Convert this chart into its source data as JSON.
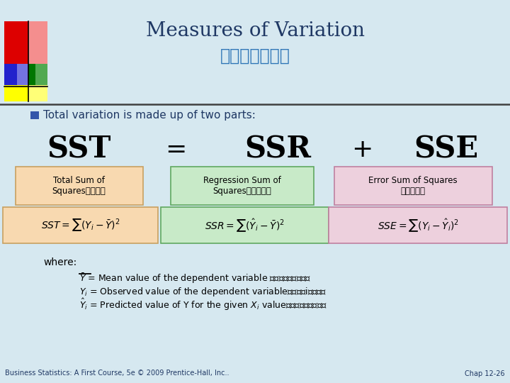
{
  "title_line1": "Measures of Variation",
  "title_line2": "随机扰动的度量",
  "title_color": "#1F3864",
  "title2_color": "#2E75B6",
  "bg_color": "#D6E8F0",
  "bullet_text": "Total variation is made up of two parts:",
  "bullet_color": "#1F3864",
  "box1_bg": "#F8D9B0",
  "box1_border": "#C8A060",
  "box1_text": "Total Sum of\nSquares总平方和",
  "box2_bg": "#C8EAC8",
  "box2_border": "#60A860",
  "box2_text": "Regression Sum of\nSquares回归平方和",
  "box3_bg": "#EDD0DD",
  "box3_border": "#C080A0",
  "box3_text": "Error Sum of Squares\n残差平方和",
  "formula1_bg": "#F8D9B0",
  "formula1_border": "#C8A060",
  "formula2_bg": "#C8EAC8",
  "formula2_border": "#60A860",
  "formula3_bg": "#EDD0DD",
  "formula3_border": "#C080A0",
  "where_text": "where:",
  "footer_left": "Business Statistics: A First Course, 5e © 2009 Prentice-Hall, Inc..",
  "footer_right": "Chap 12-26",
  "footer_color": "#1F3864",
  "line_color": "#404040"
}
